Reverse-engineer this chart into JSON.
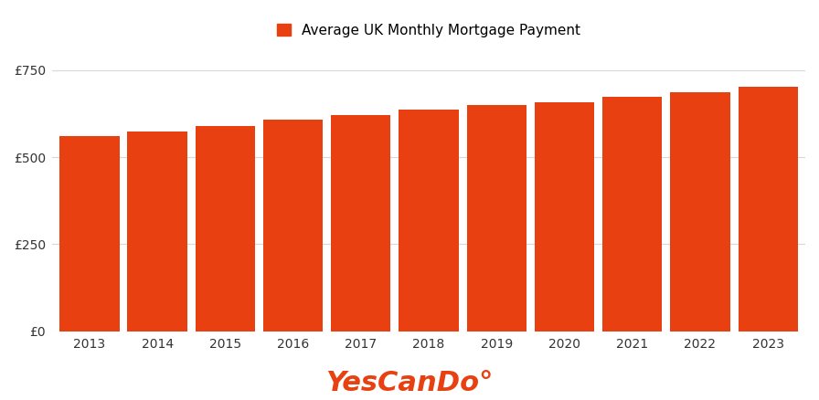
{
  "years": [
    2013,
    2014,
    2015,
    2016,
    2017,
    2018,
    2019,
    2020,
    2021,
    2022,
    2023
  ],
  "values": [
    560,
    575,
    590,
    607,
    622,
    637,
    649,
    659,
    675,
    686,
    702
  ],
  "bar_color": "#E84010",
  "background_color": "#ffffff",
  "legend_label": "Average UK Monthly Mortgage Payment",
  "legend_color": "#E84010",
  "ytick_labels": [
    "£0",
    "£250",
    "£500",
    "£750"
  ],
  "ytick_values": [
    0,
    250,
    500,
    750
  ],
  "ylim": [
    0,
    800
  ],
  "brand_text_main": "YesCanDo",
  "brand_text_super": "°",
  "brand_color": "#E84010",
  "grid_color": "#d9d9d9",
  "legend_fontsize": 11,
  "axis_fontsize": 10,
  "brand_fontsize": 22,
  "bar_width": 0.88
}
